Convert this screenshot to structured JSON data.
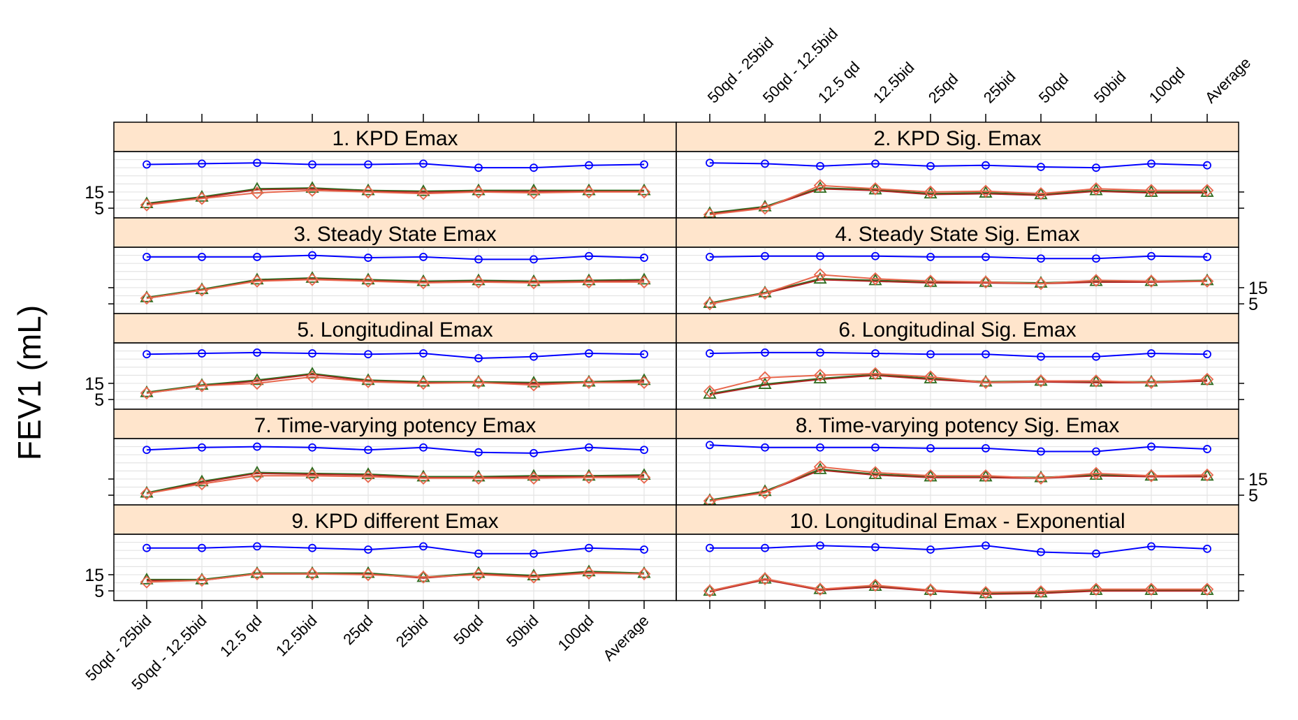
{
  "chart_data": {
    "type": "line",
    "ylabel": "FEV1 (mL)",
    "categories": [
      "50qd - 25bid",
      "50qd - 12.5bid",
      "12.5 qd",
      "12.5bid",
      "25qd",
      "25bid",
      "50qd",
      "50bid",
      "100qd",
      "Average"
    ],
    "y_tick_labels": [
      "15",
      "5"
    ],
    "ylim": [
      -1,
      40
    ],
    "grid": true,
    "series_colors": {
      "observed": "#0000ff",
      "model_a": "#2e6b1e",
      "model_b": "#e8674d",
      "model_c": "#b22222"
    },
    "panels": [
      {
        "title": "1. KPD Emax",
        "blue": [
          32,
          32.5,
          33,
          32,
          32,
          32.5,
          30,
          30,
          31.5,
          32
        ],
        "green": [
          8,
          12,
          17,
          17.5,
          16,
          15.5,
          16,
          16,
          16,
          16
        ],
        "red": [
          7,
          11,
          14.5,
          16,
          15,
          14,
          15,
          14.5,
          15,
          15
        ]
      },
      {
        "title": "2. KPD Sig. Emax",
        "blue": [
          33,
          32.5,
          31,
          32.5,
          31,
          31.5,
          30.5,
          30,
          32.5,
          31.5
        ],
        "green": [
          2,
          6,
          17.5,
          16.5,
          14,
          14.5,
          13.5,
          16,
          15,
          15
        ],
        "red": [
          1,
          5,
          19,
          17,
          15,
          15.5,
          14,
          17,
          16,
          16
        ]
      },
      {
        "title": "3. Steady State Emax",
        "blue": [
          34,
          34,
          34,
          35,
          33.5,
          34,
          32.5,
          32.5,
          34.5,
          33.5
        ],
        "green": [
          9,
          14,
          20,
          21,
          20,
          19,
          19.5,
          19,
          19.5,
          20
        ],
        "red": [
          8.5,
          13.5,
          19,
          20,
          19,
          18,
          18.5,
          18,
          18.5,
          18.5
        ]
      },
      {
        "title": "4. Steady State Sig. Emax",
        "blue": [
          34,
          34.5,
          34.5,
          34.5,
          34,
          34,
          33,
          33,
          34.5,
          34
        ],
        "green": [
          5.5,
          12,
          20.5,
          19.5,
          18.5,
          18.5,
          18,
          19,
          19,
          19.5
        ],
        "red": [
          5,
          11.5,
          23,
          20.5,
          19,
          18.5,
          17.5,
          19.5,
          19,
          19
        ]
      },
      {
        "title": "5. Longitudinal Emax",
        "blue": [
          33,
          33.5,
          34,
          33.5,
          33,
          33.5,
          30.5,
          31.5,
          33.5,
          33
        ],
        "green": [
          9.5,
          14,
          17,
          21,
          17,
          16,
          16,
          15.5,
          16,
          17
        ],
        "red": [
          9,
          13.5,
          15,
          19,
          16,
          15,
          15.5,
          14,
          15.5,
          15.5
        ]
      },
      {
        "title": "6. Longitudinal Sig. Emax",
        "blue": [
          33.5,
          34,
          34,
          33.5,
          33,
          33,
          31.5,
          31.5,
          33.5,
          33
        ],
        "green": [
          8.5,
          14.5,
          18,
          20.5,
          18,
          16,
          16.5,
          16,
          16,
          17
        ],
        "red": [
          10,
          18.5,
          20,
          21,
          19,
          15.5,
          16.5,
          16.5,
          15.5,
          17.5
        ]
      },
      {
        "title": "7. Time-varying potency Emax",
        "blue": [
          33,
          34.5,
          35,
          34.5,
          33,
          34.5,
          31.5,
          31,
          34.5,
          33
        ],
        "green": [
          6.5,
          13.5,
          19,
          18.5,
          18,
          16.5,
          16.5,
          17,
          17,
          17.5
        ],
        "red": [
          6,
          12,
          17,
          17,
          16.5,
          15.5,
          15.5,
          15.5,
          16,
          16
        ]
      },
      {
        "title": "8. Time-varying potency Sig. Emax",
        "blue": [
          36,
          34.5,
          34.5,
          34.5,
          34,
          34,
          32,
          32,
          35,
          33.5
        ],
        "green": [
          2,
          7.5,
          21,
          18,
          16.5,
          16.5,
          16,
          17.5,
          17,
          17
        ],
        "red": [
          1.5,
          6.5,
          22.5,
          19,
          17,
          17,
          15.5,
          18.5,
          17,
          17.5
        ]
      },
      {
        "title": "9. KPD different Emax",
        "blue": [
          31.5,
          31.5,
          32.5,
          31.5,
          30.5,
          32.5,
          28,
          28,
          31.5,
          30.5
        ],
        "green": [
          12,
          12,
          16,
          16,
          16,
          13.5,
          16,
          14.5,
          17,
          16
        ],
        "red": [
          10.5,
          11.5,
          15.5,
          15.5,
          15,
          13.5,
          15,
          13.5,
          16,
          15.5
        ]
      },
      {
        "title": "10. Longitudinal Emax - Exponential",
        "blue": [
          31.5,
          31.5,
          33,
          32,
          30.5,
          33,
          29,
          28,
          32.5,
          31
        ],
        "green": [
          5,
          12.5,
          6,
          8,
          5.5,
          3.5,
          4,
          5.5,
          5.5,
          5.5
        ],
        "red": [
          5,
          12.5,
          6,
          8.5,
          5.5,
          4,
          4.5,
          6,
          6,
          6
        ]
      }
    ]
  }
}
